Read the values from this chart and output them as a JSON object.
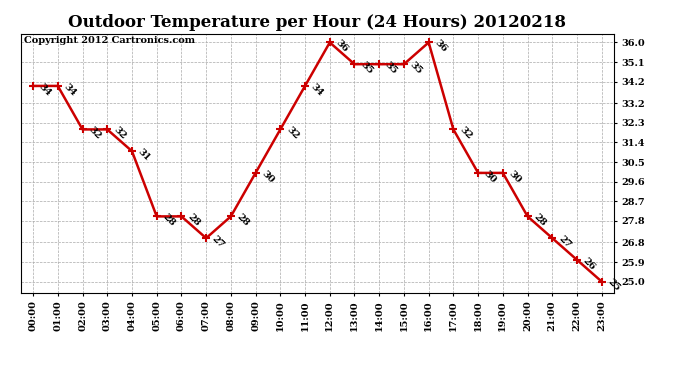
{
  "title": "Outdoor Temperature per Hour (24 Hours) 20120218",
  "copyright_text": "Copyright 2012 Cartronics.com",
  "hours": [
    "00:00",
    "01:00",
    "02:00",
    "03:00",
    "04:00",
    "05:00",
    "06:00",
    "07:00",
    "08:00",
    "09:00",
    "10:00",
    "11:00",
    "12:00",
    "13:00",
    "14:00",
    "15:00",
    "16:00",
    "17:00",
    "18:00",
    "19:00",
    "20:00",
    "21:00",
    "22:00",
    "23:00"
  ],
  "temps": [
    34,
    34,
    32,
    32,
    31,
    28,
    28,
    27,
    28,
    30,
    32,
    34,
    36,
    35,
    35,
    35,
    36,
    32,
    30,
    30,
    28,
    27,
    26,
    25
  ],
  "line_color": "#cc0000",
  "marker_color": "#cc0000",
  "background_color": "#ffffff",
  "grid_color": "#aaaaaa",
  "ylim_min": 24.5,
  "ylim_max": 36.4,
  "yticks": [
    25.0,
    25.9,
    26.8,
    27.8,
    28.7,
    29.6,
    30.5,
    31.4,
    32.3,
    33.2,
    34.2,
    35.1,
    36.0
  ],
  "title_fontsize": 12,
  "label_fontsize": 7,
  "annotation_fontsize": 7,
  "copyright_fontsize": 7
}
